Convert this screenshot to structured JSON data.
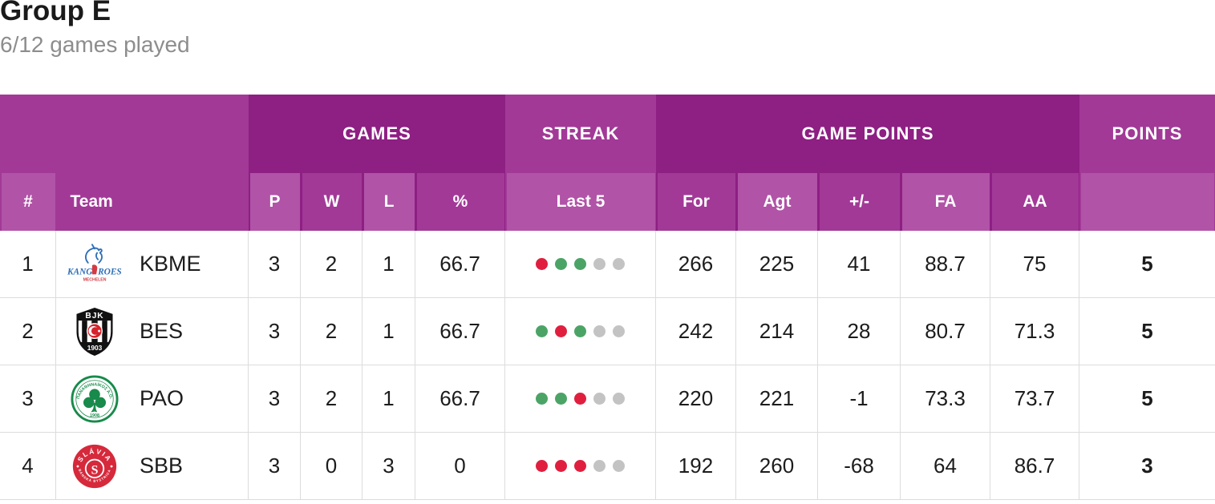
{
  "page": {
    "title": "Group E",
    "subtitle": "6/12 games played"
  },
  "table": {
    "group_headers": {
      "left": "",
      "games": "GAMES",
      "streak": "STREAK",
      "game_points": "GAME POINTS",
      "points": "POINTS"
    },
    "columns": [
      "#",
      "Team",
      "P",
      "W",
      "L",
      "%",
      "Last 5",
      "For",
      "Agt",
      "+/-",
      "FA",
      "AA",
      ""
    ],
    "rows": [
      {
        "rank": "1",
        "team": "KBME",
        "logo": "kbme",
        "p": "3",
        "w": "2",
        "l": "1",
        "pct": "66.7",
        "last5": [
          "loss",
          "win",
          "win",
          "empty",
          "empty"
        ],
        "pts_for": "266",
        "pts_against": "225",
        "diff": "41",
        "fa": "88.7",
        "aa": "75",
        "points": "5"
      },
      {
        "rank": "2",
        "team": "BES",
        "logo": "bes",
        "p": "3",
        "w": "2",
        "l": "1",
        "pct": "66.7",
        "last5": [
          "win",
          "loss",
          "win",
          "empty",
          "empty"
        ],
        "pts_for": "242",
        "pts_against": "214",
        "diff": "28",
        "fa": "80.7",
        "aa": "71.3",
        "points": "5"
      },
      {
        "rank": "3",
        "team": "PAO",
        "logo": "pao",
        "p": "3",
        "w": "2",
        "l": "1",
        "pct": "66.7",
        "last5": [
          "win",
          "win",
          "loss",
          "empty",
          "empty"
        ],
        "pts_for": "220",
        "pts_against": "221",
        "diff": "-1",
        "fa": "73.3",
        "aa": "73.7",
        "points": "5"
      },
      {
        "rank": "4",
        "team": "SBB",
        "logo": "sbb",
        "p": "3",
        "w": "0",
        "l": "3",
        "pct": "0",
        "last5": [
          "loss",
          "loss",
          "loss",
          "empty",
          "empty"
        ],
        "pts_for": "192",
        "pts_against": "260",
        "diff": "-68",
        "fa": "64",
        "aa": "86.7",
        "points": "3"
      }
    ]
  },
  "colors": {
    "header_dark": "#8E1F83",
    "header_medium": "#A23997",
    "header_light": "#B153A7",
    "streak_win": "#4BA466",
    "streak_loss": "#E01F3F",
    "streak_empty": "#C4C3C4"
  }
}
